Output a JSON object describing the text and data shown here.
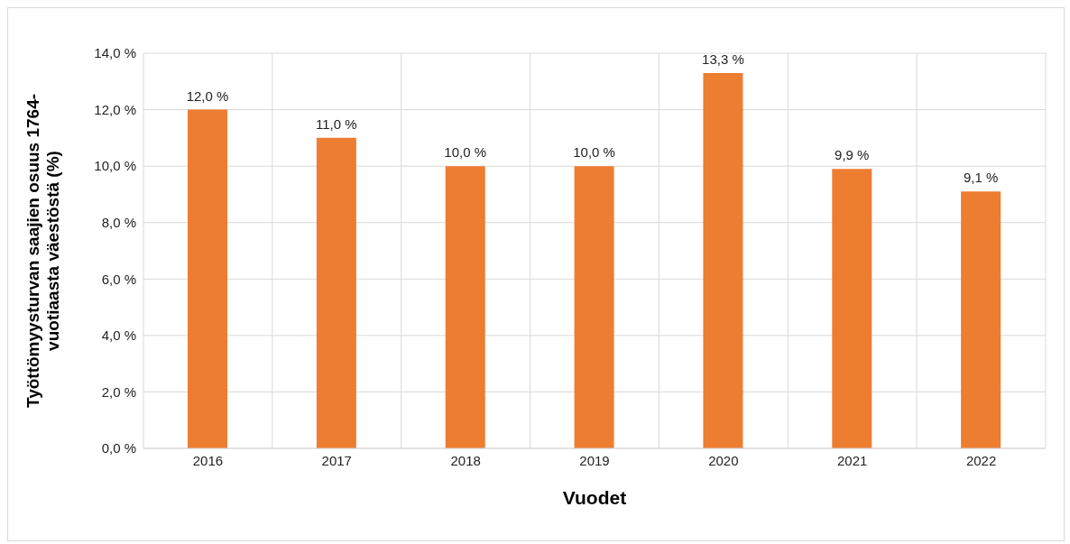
{
  "chart_data": {
    "type": "bar",
    "xlabel": "Vuodet",
    "ylabel": "Työttömyysturvan saajien osuus 1764-vuotiaasta väestöstä (%)",
    "categories": [
      "2016",
      "2017",
      "2018",
      "2019",
      "2020",
      "2021",
      "2022"
    ],
    "values": [
      12.0,
      11.0,
      10.0,
      10.0,
      13.3,
      9.9,
      9.1
    ],
    "value_labels": [
      "12,0 %",
      "11,0 %",
      "10,0 %",
      "10,0 %",
      "13,3 %",
      "9,9 %",
      "9,1 %"
    ],
    "color": "#ed7d31",
    "ylim": [
      0,
      14
    ],
    "yticks": [
      {
        "value": 0,
        "label": "0,0 %"
      },
      {
        "value": 2,
        "label": "2,0 %"
      },
      {
        "value": 4,
        "label": "4,0 %"
      },
      {
        "value": 6,
        "label": "6,0 %"
      },
      {
        "value": 8,
        "label": "8,0 %"
      },
      {
        "value": 10,
        "label": "10,0 %"
      },
      {
        "value": 12,
        "label": "12,0 %"
      },
      {
        "value": 14,
        "label": "14,0 %"
      }
    ],
    "grid": true
  }
}
